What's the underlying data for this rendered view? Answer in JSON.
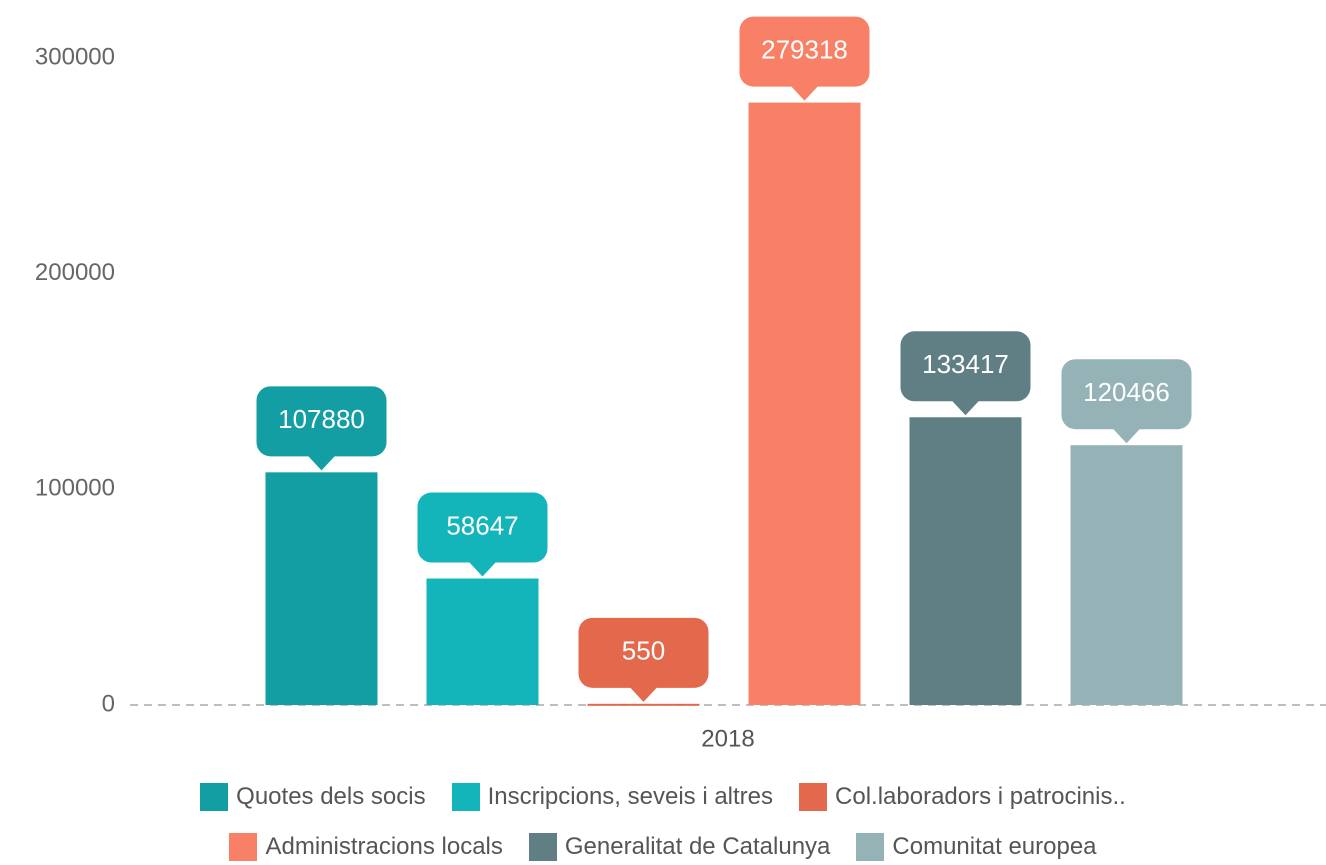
{
  "chart_data": {
    "type": "bar",
    "categories": [
      "2018"
    ],
    "series": [
      {
        "name": "Quotes dels socis",
        "color": "#139ea3",
        "values": [
          107880
        ]
      },
      {
        "name": "Inscripcions, seveis i altres",
        "color": "#14b4bb",
        "values": [
          58647
        ]
      },
      {
        "name": "Col.laboradors i patrocinis..",
        "color": "#e4694c",
        "values": [
          550
        ]
      },
      {
        "name": "Administracions locals",
        "color": "#f88066",
        "values": [
          279318
        ]
      },
      {
        "name": "Generalitat de Catalunya",
        "color": "#607f85",
        "values": [
          133417
        ]
      },
      {
        "name": "Comunitat europea",
        "color": "#95b2b6",
        "values": [
          120466
        ]
      }
    ],
    "ylim": [
      0,
      300000
    ],
    "yticks": [
      0,
      100000,
      200000,
      300000
    ],
    "grid": false,
    "legend": "bottom"
  }
}
